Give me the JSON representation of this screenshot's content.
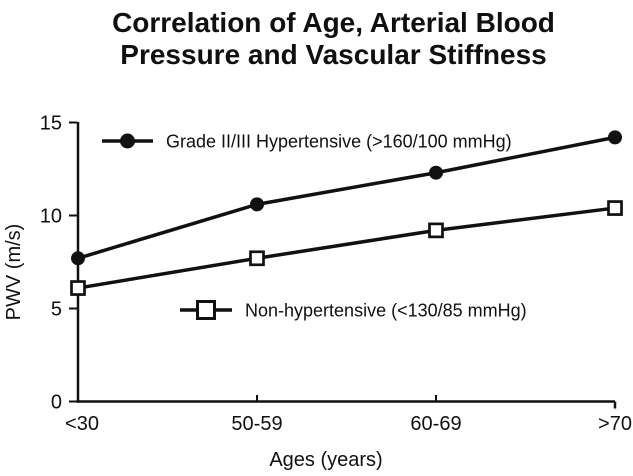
{
  "chart_data": {
    "type": "line",
    "title": "Correlation of Age, Arterial Blood Pressure and Vascular Stiffness",
    "title_lines": [
      "Correlation of Age, Arterial Blood",
      "Pressure and Vascular Stiffness"
    ],
    "xlabel": "Ages (years)",
    "ylabel": "PWV (m/s)",
    "categories": [
      "<30",
      "50-59",
      "60-69",
      ">70"
    ],
    "series": [
      {
        "name": "Grade II/III Hypertensive (>160/100 mmHg)",
        "marker": "filled-circle",
        "values": [
          7.7,
          10.6,
          12.3,
          14.2
        ]
      },
      {
        "name": "Non-hypertensive (<130/85 mmHg)",
        "marker": "open-square",
        "values": [
          6.1,
          7.7,
          9.2,
          10.4
        ]
      }
    ],
    "ylim": [
      0,
      15
    ],
    "yticks": [
      0,
      5,
      10,
      15
    ],
    "grid": false,
    "legend_position": "inside-plot (one entry top-left, one entry center)",
    "colors": {
      "line": "#111111",
      "text": "#101010",
      "background": "#ffffff",
      "open_marker_fill": "#ffffff"
    }
  }
}
